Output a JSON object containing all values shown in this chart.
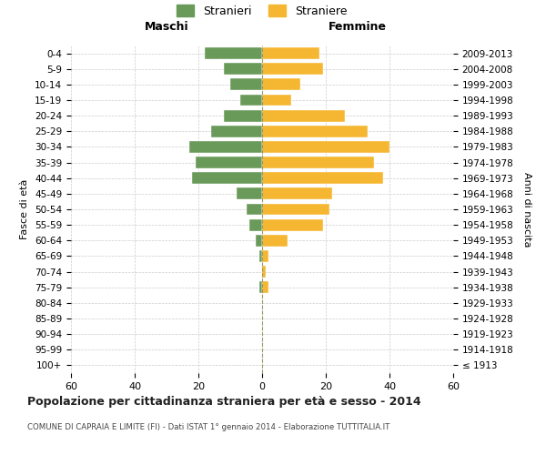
{
  "age_groups": [
    "100+",
    "95-99",
    "90-94",
    "85-89",
    "80-84",
    "75-79",
    "70-74",
    "65-69",
    "60-64",
    "55-59",
    "50-54",
    "45-49",
    "40-44",
    "35-39",
    "30-34",
    "25-29",
    "20-24",
    "15-19",
    "10-14",
    "5-9",
    "0-4"
  ],
  "birth_years": [
    "≤ 1913",
    "1914-1918",
    "1919-1923",
    "1924-1928",
    "1929-1933",
    "1934-1938",
    "1939-1943",
    "1944-1948",
    "1949-1953",
    "1954-1958",
    "1959-1963",
    "1964-1968",
    "1969-1973",
    "1974-1978",
    "1979-1983",
    "1984-1988",
    "1989-1993",
    "1994-1998",
    "1999-2003",
    "2004-2008",
    "2009-2013"
  ],
  "maschi": [
    0,
    0,
    0,
    0,
    0,
    1,
    0,
    1,
    2,
    4,
    5,
    8,
    22,
    21,
    23,
    16,
    12,
    7,
    10,
    12,
    18
  ],
  "femmine": [
    0,
    0,
    0,
    0,
    0,
    2,
    1,
    2,
    8,
    19,
    21,
    22,
    38,
    35,
    40,
    33,
    26,
    9,
    12,
    19,
    18
  ],
  "color_maschi": "#6a9a5a",
  "color_femmine": "#f5b731",
  "background_color": "#ffffff",
  "grid_color": "#cccccc",
  "center_line_color": "#999966",
  "title": "Popolazione per cittadinanza straniera per età e sesso - 2014",
  "subtitle": "COMUNE DI CAPRAIA E LIMITE (FI) - Dati ISTAT 1° gennaio 2014 - Elaborazione TUTTITALIA.IT",
  "xlabel_left": "Maschi",
  "xlabel_right": "Femmine",
  "ylabel_left": "Fasce di età",
  "ylabel_right": "Anni di nascita",
  "legend_maschi": "Stranieri",
  "legend_femmine": "Straniere",
  "xlim": 60,
  "xticks": [
    -60,
    -40,
    -20,
    0,
    20,
    40,
    60
  ],
  "xticklabels": [
    "60",
    "40",
    "20",
    "0",
    "20",
    "40",
    "60"
  ]
}
